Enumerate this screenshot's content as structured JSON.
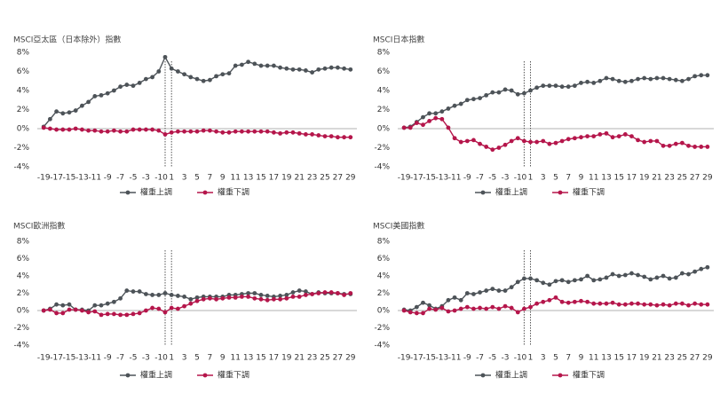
{
  "chart_data": [
    {
      "type": "line",
      "title": "MSCI亞太區（日本除外）指數",
      "x": [
        -19,
        -18,
        -17,
        -16,
        -15,
        -14,
        -13,
        -12,
        -11,
        -10,
        -9,
        -8,
        -7,
        -6,
        -5,
        -4,
        -3,
        -2,
        -1,
        0,
        1,
        2,
        3,
        4,
        5,
        6,
        7,
        8,
        9,
        10,
        11,
        12,
        13,
        14,
        15,
        16,
        17,
        18,
        19,
        20,
        21,
        22,
        23,
        24,
        25,
        26,
        27,
        28,
        29
      ],
      "xlim": [
        -20,
        30
      ],
      "xticks": [
        -19,
        -17,
        -15,
        -13,
        -11,
        -9,
        -7,
        -5,
        -3,
        -1,
        0,
        1,
        3,
        5,
        7,
        9,
        11,
        13,
        15,
        17,
        19,
        21,
        23,
        25,
        27,
        29
      ],
      "ylim": [
        -4,
        8
      ],
      "yticks": [
        {
          "value": -4,
          "label": "-4%"
        },
        {
          "value": -2,
          "label": "-2%"
        },
        {
          "value": 0,
          "label": "0%"
        },
        {
          "value": 2,
          "label": "2%"
        },
        {
          "value": 4,
          "label": "4%"
        },
        {
          "value": 6,
          "label": "6%"
        },
        {
          "value": 8,
          "label": "8%"
        }
      ],
      "vlines": [
        0,
        1
      ],
      "series": [
        {
          "name": "權重上調",
          "color": "#4d5358",
          "values": [
            0.2,
            1.0,
            1.8,
            1.6,
            1.7,
            1.9,
            2.4,
            2.8,
            3.4,
            3.5,
            3.7,
            4.0,
            4.4,
            4.6,
            4.5,
            4.8,
            5.2,
            5.4,
            6.0,
            7.5,
            6.3,
            6.0,
            5.7,
            5.4,
            5.2,
            5.0,
            5.1,
            5.5,
            5.7,
            5.8,
            6.6,
            6.7,
            7.0,
            6.8,
            6.6,
            6.6,
            6.6,
            6.4,
            6.3,
            6.2,
            6.2,
            6.1,
            5.9,
            6.2,
            6.3,
            6.4,
            6.4,
            6.3,
            6.2
          ]
        },
        {
          "name": "權重下調",
          "color": "#b5164b",
          "values": [
            0.1,
            0.0,
            -0.1,
            -0.1,
            -0.1,
            0.0,
            -0.1,
            -0.2,
            -0.2,
            -0.3,
            -0.3,
            -0.2,
            -0.3,
            -0.3,
            -0.1,
            -0.1,
            -0.1,
            -0.1,
            -0.2,
            -0.6,
            -0.4,
            -0.3,
            -0.3,
            -0.3,
            -0.3,
            -0.2,
            -0.2,
            -0.3,
            -0.4,
            -0.4,
            -0.3,
            -0.3,
            -0.3,
            -0.3,
            -0.3,
            -0.3,
            -0.4,
            -0.5,
            -0.4,
            -0.4,
            -0.5,
            -0.6,
            -0.6,
            -0.7,
            -0.8,
            -0.8,
            -0.9,
            -0.9,
            -0.9
          ]
        }
      ]
    },
    {
      "type": "line",
      "title": "MSCI日本指數",
      "x": [
        -19,
        -18,
        -17,
        -16,
        -15,
        -14,
        -13,
        -12,
        -11,
        -10,
        -9,
        -8,
        -7,
        -6,
        -5,
        -4,
        -3,
        -2,
        -1,
        0,
        1,
        2,
        3,
        4,
        5,
        6,
        7,
        8,
        9,
        10,
        11,
        12,
        13,
        14,
        15,
        16,
        17,
        18,
        19,
        20,
        21,
        22,
        23,
        24,
        25,
        26,
        27,
        28,
        29
      ],
      "xlim": [
        -20,
        30
      ],
      "xticks": [
        -19,
        -17,
        -15,
        -13,
        -11,
        -9,
        -7,
        -5,
        -3,
        -1,
        0,
        1,
        3,
        5,
        7,
        9,
        11,
        13,
        15,
        17,
        19,
        21,
        23,
        25,
        27,
        29
      ],
      "ylim": [
        -4,
        8
      ],
      "yticks": [
        {
          "value": -4,
          "label": "-4%"
        },
        {
          "value": -2,
          "label": "-2%"
        },
        {
          "value": 0,
          "label": "0%"
        },
        {
          "value": 2,
          "label": "2%"
        },
        {
          "value": 4,
          "label": "4%"
        },
        {
          "value": 6,
          "label": "6%"
        },
        {
          "value": 8,
          "label": "8%"
        }
      ],
      "vlines": [
        0,
        1
      ],
      "series": [
        {
          "name": "權重上調",
          "color": "#4d5358",
          "values": [
            0.1,
            0.2,
            0.7,
            1.2,
            1.6,
            1.6,
            1.8,
            2.1,
            2.4,
            2.6,
            3.0,
            3.1,
            3.2,
            3.5,
            3.8,
            3.8,
            4.1,
            4.0,
            3.6,
            3.7,
            4.0,
            4.3,
            4.5,
            4.5,
            4.5,
            4.4,
            4.4,
            4.5,
            4.8,
            4.9,
            4.8,
            5.0,
            5.3,
            5.2,
            5.0,
            4.9,
            5.0,
            5.2,
            5.3,
            5.2,
            5.3,
            5.3,
            5.2,
            5.1,
            5.0,
            5.2,
            5.5,
            5.6,
            5.6
          ]
        },
        {
          "name": "權重下調",
          "color": "#b5164b",
          "values": [
            0.1,
            0.1,
            0.6,
            0.4,
            0.8,
            1.1,
            1.0,
            0.1,
            -1.0,
            -1.4,
            -1.3,
            -1.2,
            -1.6,
            -1.9,
            -2.2,
            -2.0,
            -1.7,
            -1.3,
            -1.0,
            -1.3,
            -1.4,
            -1.4,
            -1.3,
            -1.6,
            -1.5,
            -1.3,
            -1.1,
            -1.0,
            -0.9,
            -0.8,
            -0.8,
            -0.6,
            -0.5,
            -0.9,
            -0.8,
            -0.6,
            -0.8,
            -1.2,
            -1.4,
            -1.3,
            -1.3,
            -1.8,
            -1.8,
            -1.6,
            -1.5,
            -1.8,
            -1.9,
            -1.9,
            -1.9
          ]
        }
      ]
    },
    {
      "type": "line",
      "title": "MSCI歐洲指數",
      "x": [
        -19,
        -18,
        -17,
        -16,
        -15,
        -14,
        -13,
        -12,
        -11,
        -10,
        -9,
        -8,
        -7,
        -6,
        -5,
        -4,
        -3,
        -2,
        -1,
        0,
        1,
        2,
        3,
        4,
        5,
        6,
        7,
        8,
        9,
        10,
        11,
        12,
        13,
        14,
        15,
        16,
        17,
        18,
        19,
        20,
        21,
        22,
        23,
        24,
        25,
        26,
        27,
        28,
        29
      ],
      "xlim": [
        -20,
        30
      ],
      "xticks": [
        -19,
        -17,
        -15,
        -13,
        -11,
        -9,
        -7,
        -5,
        -3,
        -1,
        0,
        1,
        3,
        5,
        7,
        9,
        11,
        13,
        15,
        17,
        19,
        21,
        23,
        25,
        27,
        29
      ],
      "ylim": [
        -4,
        8
      ],
      "yticks": [
        {
          "value": -4,
          "label": "-4%"
        },
        {
          "value": -2,
          "label": "-2%"
        },
        {
          "value": 0,
          "label": "0%"
        },
        {
          "value": 2,
          "label": "2%"
        },
        {
          "value": 4,
          "label": "4%"
        },
        {
          "value": 6,
          "label": "6%"
        },
        {
          "value": 8,
          "label": "8%"
        }
      ],
      "vlines": [
        0,
        1
      ],
      "series": [
        {
          "name": "權重上調",
          "color": "#4d5358",
          "values": [
            0.0,
            0.2,
            0.7,
            0.6,
            0.7,
            0.1,
            0.1,
            0.0,
            0.6,
            0.6,
            0.8,
            1.0,
            1.4,
            2.3,
            2.2,
            2.2,
            1.9,
            1.8,
            1.8,
            2.0,
            1.8,
            1.7,
            1.6,
            1.3,
            1.5,
            1.6,
            1.6,
            1.6,
            1.6,
            1.8,
            1.8,
            1.9,
            2.0,
            2.0,
            1.8,
            1.7,
            1.6,
            1.7,
            1.8,
            2.1,
            2.3,
            2.2,
            1.9,
            2.1,
            2.0,
            2.0,
            2.0,
            1.9,
            1.9
          ]
        },
        {
          "name": "權重下調",
          "color": "#b5164b",
          "values": [
            0.0,
            0.1,
            -0.3,
            -0.3,
            0.1,
            0.1,
            0.0,
            -0.2,
            -0.1,
            -0.5,
            -0.4,
            -0.4,
            -0.5,
            -0.5,
            -0.4,
            -0.3,
            0.0,
            0.3,
            0.2,
            -0.2,
            0.3,
            0.2,
            0.5,
            0.8,
            1.1,
            1.3,
            1.4,
            1.3,
            1.4,
            1.5,
            1.5,
            1.6,
            1.6,
            1.4,
            1.3,
            1.2,
            1.3,
            1.3,
            1.4,
            1.6,
            1.6,
            1.8,
            1.9,
            2.0,
            2.1,
            2.1,
            2.0,
            1.8,
            2.0
          ]
        }
      ]
    },
    {
      "type": "line",
      "title": "MSCI美國指數",
      "x": [
        -19,
        -18,
        -17,
        -16,
        -15,
        -14,
        -13,
        -12,
        -11,
        -10,
        -9,
        -8,
        -7,
        -6,
        -5,
        -4,
        -3,
        -2,
        -1,
        0,
        1,
        2,
        3,
        4,
        5,
        6,
        7,
        8,
        9,
        10,
        11,
        12,
        13,
        14,
        15,
        16,
        17,
        18,
        19,
        20,
        21,
        22,
        23,
        24,
        25,
        26,
        27,
        28,
        29
      ],
      "xlim": [
        -20,
        30
      ],
      "xticks": [
        -19,
        -17,
        -15,
        -13,
        -11,
        -9,
        -7,
        -5,
        -3,
        -1,
        0,
        1,
        3,
        5,
        7,
        9,
        11,
        13,
        15,
        17,
        19,
        21,
        23,
        25,
        27,
        29
      ],
      "ylim": [
        -4,
        8
      ],
      "yticks": [
        {
          "value": -4,
          "label": "-4%"
        },
        {
          "value": -2,
          "label": "-2%"
        },
        {
          "value": 0,
          "label": "0%"
        },
        {
          "value": 2,
          "label": "2%"
        },
        {
          "value": 4,
          "label": "4%"
        },
        {
          "value": 6,
          "label": "6%"
        },
        {
          "value": 8,
          "label": "8%"
        }
      ],
      "vlines": [
        0,
        1
      ],
      "series": [
        {
          "name": "權重上調",
          "color": "#4d5358",
          "values": [
            0.1,
            0.0,
            0.4,
            0.9,
            0.6,
            0.2,
            0.5,
            1.2,
            1.5,
            1.2,
            2.0,
            1.9,
            2.1,
            2.3,
            2.5,
            2.3,
            2.3,
            2.7,
            3.3,
            3.7,
            3.7,
            3.5,
            3.2,
            3.0,
            3.4,
            3.5,
            3.3,
            3.5,
            3.6,
            4.0,
            3.5,
            3.6,
            3.8,
            4.2,
            4.0,
            4.1,
            4.3,
            4.1,
            3.9,
            3.6,
            3.8,
            4.0,
            3.7,
            3.8,
            4.3,
            4.2,
            4.5,
            4.8,
            5.0
          ]
        },
        {
          "name": "權重下調",
          "color": "#b5164b",
          "values": [
            0.0,
            -0.2,
            -0.3,
            -0.3,
            0.2,
            0.1,
            0.3,
            -0.1,
            0.0,
            0.2,
            0.4,
            0.2,
            0.3,
            0.2,
            0.4,
            0.2,
            0.5,
            0.3,
            -0.2,
            0.2,
            0.4,
            0.8,
            1.0,
            1.2,
            1.5,
            1.0,
            0.9,
            1.0,
            1.1,
            1.0,
            0.8,
            0.8,
            0.8,
            0.9,
            0.7,
            0.7,
            0.8,
            0.8,
            0.7,
            0.7,
            0.6,
            0.7,
            0.6,
            0.8,
            0.8,
            0.6,
            0.8,
            0.7,
            0.7
          ]
        }
      ]
    }
  ]
}
